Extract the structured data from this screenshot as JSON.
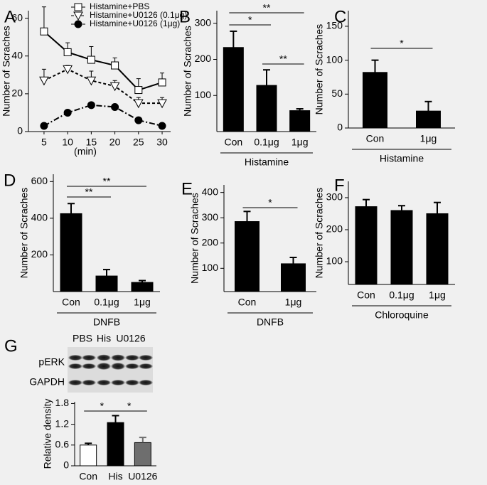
{
  "chart_data": [
    {
      "type": "line",
      "panel": "A",
      "y_label": "Number of Scraches",
      "x_label": "(min)",
      "x": [
        5,
        10,
        15,
        20,
        25,
        30
      ],
      "xlim": [
        1.7,
        31.8
      ],
      "xticks": [
        5,
        10,
        15,
        20,
        25,
        30
      ],
      "ylim": [
        0,
        64
      ],
      "yticks": [
        0,
        20,
        40,
        60
      ],
      "series": [
        {
          "name": "Histamine+PBS",
          "color": "#000000",
          "line_style": "solid",
          "marker": "square",
          "values": [
            53,
            42,
            38,
            35,
            22,
            26
          ],
          "errors": [
            13,
            5,
            7,
            4,
            6,
            5
          ]
        },
        {
          "name": "Histamine+U0126 (0.1μg)",
          "color": "#000000",
          "line_style": "dotted",
          "marker": "triangle",
          "values": [
            27,
            33,
            27,
            24,
            15,
            15
          ],
          "errors": [
            6,
            2,
            5,
            3,
            3,
            3
          ]
        },
        {
          "name": "Histamine+U0126 (1μg)",
          "color": "#000000",
          "line_style": "dashdot",
          "marker": "circle",
          "values": [
            3,
            10,
            14,
            13,
            6,
            3
          ]
        }
      ]
    },
    {
      "type": "bar",
      "panel": "B",
      "y_label": "Number of Scraches",
      "x_label": "Histamine",
      "color": "#000000",
      "categories": [
        "Con",
        "0.1μg",
        "1μg"
      ],
      "values": [
        233,
        128,
        58
      ],
      "errors": [
        45,
        43,
        5
      ],
      "ylim": [
        0,
        335
      ],
      "yticks": [
        100,
        200,
        300
      ],
      "annotations": [
        "**",
        "*",
        "**"
      ]
    },
    {
      "type": "bar",
      "panel": "C",
      "y_label": "Number of Scraches",
      "x_label": "Histamine",
      "color": "#000000",
      "categories": [
        "Con",
        "1μg"
      ],
      "values": [
        82,
        25
      ],
      "errors": [
        18,
        14
      ],
      "ylim": [
        0,
        173
      ],
      "yticks": [
        0,
        50,
        100,
        150
      ],
      "annotations": [
        "*"
      ]
    },
    {
      "type": "bar",
      "panel": "D",
      "y_label": "Number of Scraches",
      "x_label": "DNFB",
      "color": "#000000",
      "categories": [
        "Con",
        "0.1μg",
        "1μg"
      ],
      "values": [
        425,
        85,
        50
      ],
      "errors": [
        55,
        35,
        10
      ],
      "ylim": [
        0,
        640
      ],
      "yticks": [
        200,
        400,
        600
      ],
      "annotations": [
        "**",
        "**"
      ]
    },
    {
      "type": "bar",
      "panel": "E",
      "y_label": "Number of Scraches",
      "x_label": "DNFB",
      "color": "#000000",
      "categories": [
        "Con",
        "1μg"
      ],
      "values": [
        285,
        118
      ],
      "errors": [
        40,
        25
      ],
      "ylim": [
        8,
        430
      ],
      "yticks": [
        100,
        200,
        300,
        400
      ],
      "annotations": [
        "*"
      ]
    },
    {
      "type": "bar",
      "panel": "F",
      "y_label": "Number of Scraches",
      "x_label": "Chloroquine",
      "color": "#000000",
      "categories": [
        "Con",
        "0.1μg",
        "1μg"
      ],
      "values": [
        272,
        260,
        250
      ],
      "errors": [
        22,
        15,
        35
      ],
      "ylim": [
        29,
        351
      ],
      "yticks": [
        100,
        200,
        300
      ],
      "annotations": []
    },
    {
      "type": "bar",
      "panel": "G",
      "y_label": "Relative density",
      "colors": [
        "#ffffff",
        "#000000",
        "#6e6e6e"
      ],
      "categories": [
        "Con",
        "His",
        "U0126"
      ],
      "values": [
        0.6,
        1.25,
        0.67
      ],
      "errors": [
        0.05,
        0.2,
        0.15
      ],
      "ylim": [
        0,
        1.85
      ],
      "yticks": [
        0,
        0.6,
        1.2,
        1.8
      ],
      "annotations": [
        "*",
        "*"
      ],
      "blot": {
        "lanes": [
          "PBS",
          "His",
          "U0126"
        ],
        "rows": [
          "pERK",
          "GAPDH"
        ]
      }
    }
  ]
}
